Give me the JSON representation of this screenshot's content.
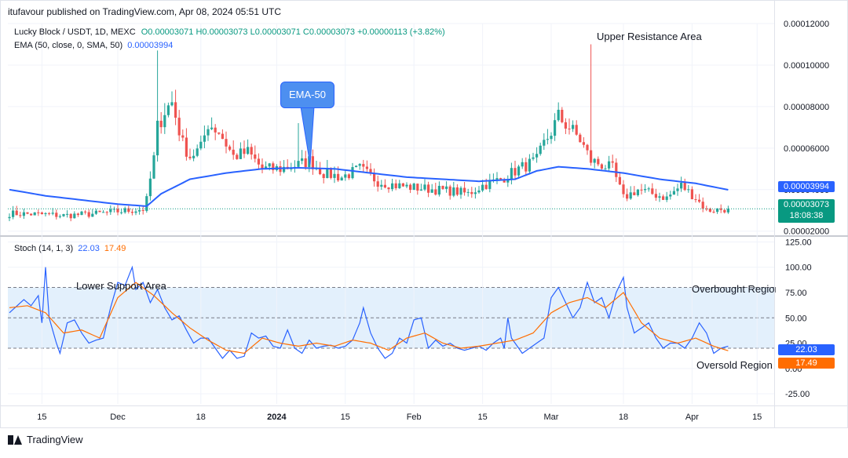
{
  "caption": "itufavour published on TradingView.com, Apr 08, 2024 05:51 UTC",
  "legend": {
    "symbol": "Lucky Block / USDT, 1D, MEXC",
    "o": "O0.00003071",
    "h": "H0.00003073",
    "l": "L0.00003071",
    "c": "C0.00003073",
    "change": "+0.00000113 (+3.82%)",
    "ema_label": "EMA (50, close, 0, SMA, 50)",
    "ema_value": "0.00003994",
    "stoch_label": "Stoch (14, 1, 3)",
    "stoch_k": "22.03",
    "stoch_d": "17.49"
  },
  "annotations": {
    "upper_resistance": "Upper Resistance Area",
    "ema_callout": "EMA-50",
    "lower_support": "Lower Support Area",
    "overbought": "Overbought Region",
    "oversold": "Oversold Region"
  },
  "price_tags": {
    "ema": "0.00003994",
    "last": "0.00003073",
    "countdown": "18:08:38",
    "stoch_k": "22.03",
    "stoch_d": "17.49"
  },
  "footer": {
    "brand": "TradingView"
  },
  "colors": {
    "up": "#26a69a",
    "down": "#ef5350",
    "ema": "#2962ff",
    "stoch_k": "#2962ff",
    "stoch_d": "#ff6d00",
    "band": "#e3f0fc",
    "last_price": "#089981"
  },
  "chart_data": [
    {
      "type": "candlestick",
      "title": "Lucky Block / USDT, 1D, MEXC",
      "x_ticks": [
        "15",
        "Dec",
        "18",
        "2024",
        "15",
        "Feb",
        "15",
        "Mar",
        "18",
        "Apr",
        "15"
      ],
      "y_ticks": [
        "0.00002000",
        "0.00004000",
        "0.00006000",
        "0.00008000",
        "0.00010000",
        "0.00012000"
      ],
      "ylim": [
        1.8e-05,
        0.00012
      ],
      "anchors": [
        [
          0,
          2.85e-05
        ],
        [
          10,
          2.8e-05
        ],
        [
          15,
          2.75e-05
        ],
        [
          25,
          2.85e-05
        ],
        [
          30,
          2.95e-05
        ],
        [
          37,
          3.05e-05
        ],
        [
          38,
          3.5e-05
        ],
        [
          40,
          5.5e-05
        ],
        [
          41,
          7e-05
        ],
        [
          43,
          7.8e-05
        ],
        [
          45,
          8.2e-05
        ],
        [
          48,
          6.2e-05
        ],
        [
          50,
          5.6e-05
        ],
        [
          53,
          6e-05
        ],
        [
          55,
          7.2e-05
        ],
        [
          58,
          6.8e-05
        ],
        [
          62,
          5.6e-05
        ],
        [
          66,
          5.8e-05
        ],
        [
          70,
          5e-05
        ],
        [
          75,
          5e-05
        ],
        [
          80,
          5.2e-05
        ],
        [
          83,
          5.4e-05
        ],
        [
          87,
          4.8e-05
        ],
        [
          92,
          4.6e-05
        ],
        [
          97,
          5e-05
        ],
        [
          102,
          4.4e-05
        ],
        [
          107,
          4.2e-05
        ],
        [
          112,
          4.1e-05
        ],
        [
          118,
          4e-05
        ],
        [
          124,
          3.9e-05
        ],
        [
          127,
          3.8e-05
        ],
        [
          131,
          4.2e-05
        ],
        [
          136,
          4.5e-05
        ],
        [
          141,
          5e-05
        ],
        [
          146,
          5.4e-05
        ],
        [
          148,
          6.2e-05
        ],
        [
          150,
          6.8e-05
        ],
        [
          152,
          7.5e-05
        ],
        [
          155,
          7e-05
        ],
        [
          158,
          6.4e-05
        ],
        [
          161,
          5.4e-05
        ],
        [
          164,
          5.2e-05
        ],
        [
          167,
          5e-05
        ],
        [
          170,
          3.6e-05
        ],
        [
          174,
          4e-05
        ],
        [
          178,
          3.8e-05
        ],
        [
          182,
          3.6e-05
        ],
        [
          186,
          4.2e-05
        ],
        [
          190,
          3.6e-05
        ],
        [
          193,
          3e-05
        ],
        [
          199,
          3.07e-05
        ]
      ],
      "ema_anchors": [
        [
          0,
          4e-05
        ],
        [
          10,
          3.7e-05
        ],
        [
          20,
          3.5e-05
        ],
        [
          30,
          3.3e-05
        ],
        [
          38,
          3.2e-05
        ],
        [
          42,
          3.8e-05
        ],
        [
          50,
          4.5e-05
        ],
        [
          60,
          4.8e-05
        ],
        [
          70,
          5e-05
        ],
        [
          80,
          5.05e-05
        ],
        [
          90,
          5e-05
        ],
        [
          100,
          4.8e-05
        ],
        [
          110,
          4.6e-05
        ],
        [
          120,
          4.5e-05
        ],
        [
          130,
          4.4e-05
        ],
        [
          140,
          4.5e-05
        ],
        [
          146,
          4.9e-05
        ],
        [
          152,
          5.1e-05
        ],
        [
          160,
          5e-05
        ],
        [
          170,
          4.8e-05
        ],
        [
          180,
          4.5e-05
        ],
        [
          190,
          4.3e-05
        ],
        [
          199,
          3.99e-05
        ]
      ],
      "last_close": 3.073e-05,
      "ema_last": 3.994e-05
    },
    {
      "type": "line",
      "title": "Stoch (14, 1, 3)",
      "y_ticks": [
        "-25.00",
        "0.00",
        "25.00",
        "50.00",
        "75.00",
        "100.00",
        "125.00"
      ],
      "ylim": [
        -35,
        130
      ],
      "levels": [
        80,
        50,
        20
      ],
      "series": [
        {
          "name": "%K",
          "anchors": [
            [
              0,
              55
            ],
            [
              4,
              68
            ],
            [
              6,
              62
            ],
            [
              8,
              72
            ],
            [
              9,
              45
            ],
            [
              10,
              100
            ],
            [
              11,
              50
            ],
            [
              13,
              25
            ],
            [
              14,
              15
            ],
            [
              16,
              45
            ],
            [
              18,
              48
            ],
            [
              20,
              35
            ],
            [
              22,
              25
            ],
            [
              24,
              28
            ],
            [
              26,
              30
            ],
            [
              28,
              60
            ],
            [
              30,
              85
            ],
            [
              32,
              82
            ],
            [
              34,
              100
            ],
            [
              35,
              78
            ],
            [
              37,
              85
            ],
            [
              39,
              65
            ],
            [
              41,
              78
            ],
            [
              43,
              60
            ],
            [
              45,
              48
            ],
            [
              47,
              52
            ],
            [
              49,
              38
            ],
            [
              51,
              25
            ],
            [
              53,
              30
            ],
            [
              55,
              30
            ],
            [
              57,
              20
            ],
            [
              59,
              10
            ],
            [
              61,
              18
            ],
            [
              63,
              10
            ],
            [
              65,
              12
            ],
            [
              67,
              35
            ],
            [
              69,
              30
            ],
            [
              71,
              32
            ],
            [
              73,
              22
            ],
            [
              75,
              20
            ],
            [
              77,
              38
            ],
            [
              79,
              20
            ],
            [
              81,
              15
            ],
            [
              83,
              28
            ],
            [
              85,
              20
            ],
            [
              87,
              22
            ],
            [
              89,
              23
            ],
            [
              91,
              20
            ],
            [
              93,
              22
            ],
            [
              95,
              28
            ],
            [
              97,
              45
            ],
            [
              98,
              60
            ],
            [
              100,
              35
            ],
            [
              102,
              20
            ],
            [
              104,
              10
            ],
            [
              106,
              15
            ],
            [
              108,
              30
            ],
            [
              110,
              25
            ],
            [
              112,
              48
            ],
            [
              114,
              50
            ],
            [
              116,
              20
            ],
            [
              118,
              28
            ],
            [
              120,
              22
            ],
            [
              122,
              25
            ],
            [
              124,
              20
            ],
            [
              126,
              18
            ],
            [
              128,
              20
            ],
            [
              130,
              22
            ],
            [
              132,
              18
            ],
            [
              134,
              25
            ],
            [
              136,
              30
            ],
            [
              137,
              20
            ],
            [
              138,
              50
            ],
            [
              139,
              30
            ],
            [
              140,
              25
            ],
            [
              142,
              15
            ],
            [
              144,
              20
            ],
            [
              146,
              25
            ],
            [
              148,
              30
            ],
            [
              150,
              70
            ],
            [
              152,
              80
            ],
            [
              154,
              65
            ],
            [
              156,
              50
            ],
            [
              158,
              60
            ],
            [
              160,
              85
            ],
            [
              162,
              65
            ],
            [
              164,
              70
            ],
            [
              166,
              50
            ],
            [
              168,
              75
            ],
            [
              170,
              90
            ],
            [
              171,
              60
            ],
            [
              173,
              35
            ],
            [
              175,
              40
            ],
            [
              177,
              45
            ],
            [
              179,
              30
            ],
            [
              181,
              20
            ],
            [
              183,
              25
            ],
            [
              185,
              25
            ],
            [
              187,
              20
            ],
            [
              189,
              30
            ],
            [
              191,
              45
            ],
            [
              193,
              35
            ],
            [
              195,
              15
            ],
            [
              197,
              20
            ],
            [
              199,
              22
            ]
          ]
        },
        {
          "name": "%D",
          "anchors": [
            [
              0,
              60
            ],
            [
              5,
              62
            ],
            [
              10,
              55
            ],
            [
              15,
              35
            ],
            [
              20,
              38
            ],
            [
              25,
              30
            ],
            [
              30,
              70
            ],
            [
              35,
              85
            ],
            [
              40,
              72
            ],
            [
              45,
              55
            ],
            [
              50,
              40
            ],
            [
              55,
              28
            ],
            [
              60,
              18
            ],
            [
              65,
              15
            ],
            [
              70,
              30
            ],
            [
              75,
              25
            ],
            [
              80,
              22
            ],
            [
              85,
              25
            ],
            [
              90,
              22
            ],
            [
              95,
              28
            ],
            [
              100,
              25
            ],
            [
              105,
              18
            ],
            [
              110,
              30
            ],
            [
              115,
              35
            ],
            [
              120,
              25
            ],
            [
              125,
              20
            ],
            [
              130,
              22
            ],
            [
              135,
              25
            ],
            [
              140,
              28
            ],
            [
              145,
              35
            ],
            [
              150,
              55
            ],
            [
              155,
              65
            ],
            [
              160,
              70
            ],
            [
              165,
              60
            ],
            [
              170,
              75
            ],
            [
              175,
              45
            ],
            [
              180,
              30
            ],
            [
              185,
              25
            ],
            [
              190,
              30
            ],
            [
              195,
              22
            ],
            [
              199,
              17.49
            ]
          ]
        }
      ],
      "k_last": 22.03,
      "d_last": 17.49
    }
  ]
}
